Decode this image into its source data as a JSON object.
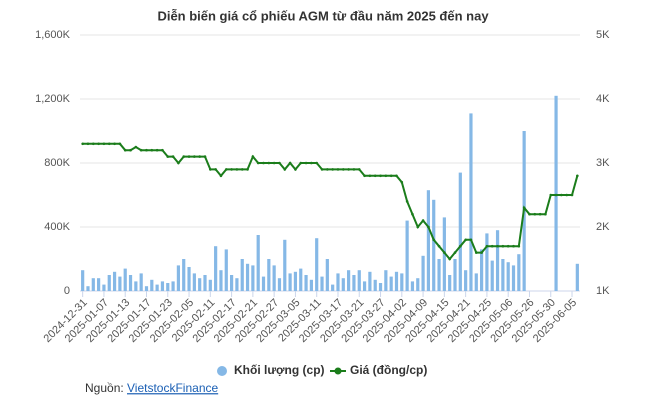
{
  "chart_data": {
    "type": "combo",
    "title": "Diễn biến giá cổ phiếu AGM từ đầu năm 2025 đến nay",
    "categories": [
      "2024-12-31",
      null,
      null,
      null,
      "2025-01-07",
      null,
      null,
      null,
      "2025-01-13",
      null,
      null,
      null,
      "2025-01-17",
      null,
      null,
      null,
      "2025-01-23",
      null,
      null,
      null,
      "2025-02-05",
      null,
      null,
      null,
      "2025-02-11",
      null,
      null,
      null,
      "2025-02-17",
      null,
      null,
      null,
      "2025-02-21",
      null,
      null,
      null,
      "2025-02-27",
      null,
      null,
      null,
      "2025-03-05",
      null,
      null,
      null,
      "2025-03-11",
      null,
      null,
      null,
      "2025-03-17",
      null,
      null,
      null,
      "2025-03-21",
      null,
      null,
      null,
      "2025-03-27",
      null,
      null,
      null,
      "2025-04-02",
      null,
      null,
      null,
      "2025-04-09",
      null,
      null,
      null,
      "2025-04-15",
      null,
      null,
      null,
      "2025-04-21",
      null,
      null,
      null,
      "2025-04-25",
      null,
      null,
      null,
      "2025-05-06",
      null,
      null,
      null,
      "2025-05-26",
      null,
      null,
      null,
      "2025-05-30",
      null,
      null,
      null,
      "2025-06-05",
      null
    ],
    "series": [
      {
        "name": "Khối lượng (cp)",
        "type": "bar",
        "color": "#85b8e6",
        "values": [
          130000,
          30000,
          80000,
          80000,
          40000,
          100000,
          120000,
          90000,
          140000,
          100000,
          60000,
          110000,
          30000,
          70000,
          40000,
          60000,
          50000,
          60000,
          160000,
          200000,
          150000,
          110000,
          80000,
          100000,
          70000,
          280000,
          130000,
          260000,
          100000,
          80000,
          200000,
          170000,
          160000,
          350000,
          90000,
          200000,
          160000,
          80000,
          320000,
          110000,
          120000,
          140000,
          100000,
          70000,
          330000,
          90000,
          200000,
          40000,
          110000,
          80000,
          130000,
          100000,
          130000,
          60000,
          120000,
          70000,
          50000,
          130000,
          90000,
          120000,
          110000,
          440000,
          60000,
          80000,
          220000,
          630000,
          570000,
          200000,
          460000,
          100000,
          200000,
          740000,
          130000,
          1110000,
          110000,
          260000,
          360000,
          190000,
          380000,
          200000,
          180000,
          160000,
          230000,
          1000000,
          0,
          0,
          0,
          0,
          0,
          1220000,
          0,
          0,
          0,
          170000
        ]
      },
      {
        "name": "Giá (đồng/cp)",
        "type": "line",
        "axis": "y2",
        "color": "#1b7d1b",
        "values": [
          3300,
          3300,
          3300,
          3300,
          3300,
          3300,
          3300,
          3300,
          3200,
          3200,
          3250,
          3200,
          3200,
          3200,
          3200,
          3200,
          3100,
          3100,
          3000,
          3100,
          3100,
          3100,
          3100,
          3100,
          2900,
          2900,
          2800,
          2900,
          2900,
          2900,
          2900,
          2900,
          3100,
          3000,
          3000,
          3000,
          3000,
          3000,
          2900,
          3000,
          2900,
          3000,
          3000,
          3000,
          3000,
          2900,
          2900,
          2900,
          2900,
          2900,
          2900,
          2900,
          2900,
          2800,
          2800,
          2800,
          2800,
          2800,
          2800,
          2800,
          2700,
          2400,
          2200,
          2000,
          2100,
          2000,
          1800,
          1700,
          1600,
          1500,
          1600,
          1700,
          1800,
          1800,
          1600,
          1600,
          1700,
          1700,
          1700,
          1700,
          1700,
          1700,
          1700,
          2300,
          2200,
          2200,
          2200,
          2200,
          2500,
          2500,
          2500,
          2500,
          2500,
          2800
        ]
      }
    ],
    "ylim": [
      0,
      1600000
    ],
    "yticks": [
      {
        "value": 0,
        "label": "0"
      },
      {
        "value": 400000,
        "label": "400K"
      },
      {
        "value": 800000,
        "label": "800K"
      },
      {
        "value": 1200000,
        "label": "1,200K"
      },
      {
        "value": 1600000,
        "label": "1,600K"
      }
    ],
    "y2lim": [
      1000,
      5000
    ],
    "y2ticks": [
      {
        "value": 1000,
        "label": "1K"
      },
      {
        "value": 2000,
        "label": "2K"
      },
      {
        "value": 3000,
        "label": "3K"
      },
      {
        "value": 4000,
        "label": "4K"
      },
      {
        "value": 5000,
        "label": "5K"
      }
    ],
    "grid": true,
    "source_label": "Nguồn:",
    "source": "VietstockFinance"
  }
}
